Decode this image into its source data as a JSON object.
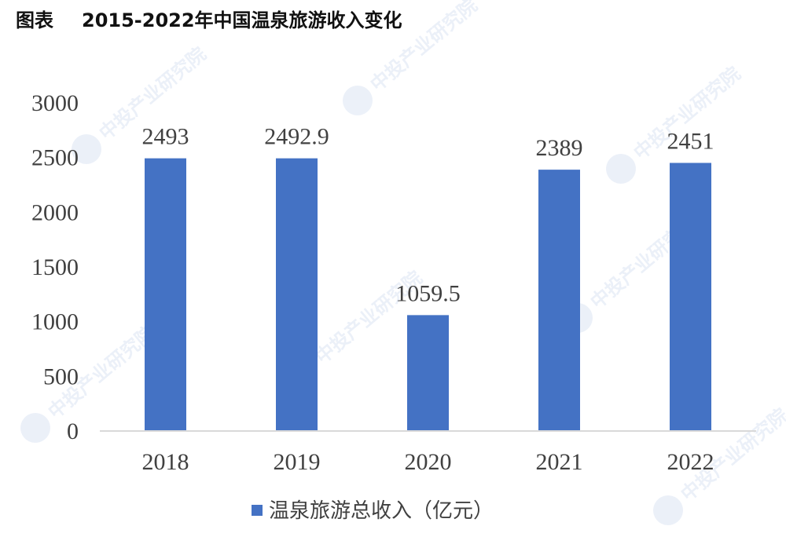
{
  "header": {
    "label": "图表",
    "title": "2015-2022年中国温泉旅游收入变化"
  },
  "watermark": {
    "text": "中投产业研究院"
  },
  "chart_data": {
    "type": "bar",
    "categories": [
      "2018",
      "2019",
      "2020",
      "2021",
      "2022"
    ],
    "series": [
      {
        "name": "温泉旅游总收入（亿元）",
        "values": [
          2493,
          2492.9,
          1059.5,
          2389,
          2451
        ],
        "color": "#4472C4"
      }
    ],
    "data_labels": [
      "2493",
      "2492.9",
      "1059.5",
      "2389",
      "2451"
    ],
    "ylim": [
      0,
      3000
    ],
    "yticks": [
      0,
      500,
      1000,
      1500,
      2000,
      2500,
      3000
    ],
    "grid": false,
    "legend_position": "bottom",
    "xlabel": "",
    "ylabel": ""
  }
}
